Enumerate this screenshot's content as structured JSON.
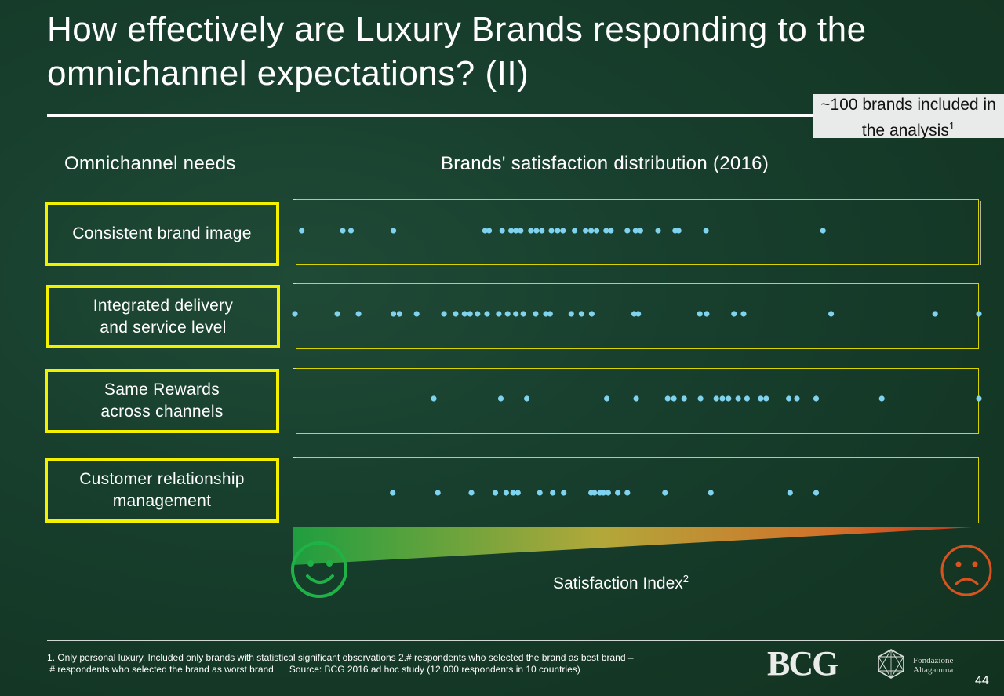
{
  "title": "How  effectively are Luxury Brands responding to the omnichannel expectations? (II)",
  "count_note": {
    "text": "~100 brands included in the analysis",
    "footnote_mark": "1"
  },
  "headers": {
    "needs": "Omnichannel needs",
    "distribution": "Brands' satisfaction distribution (2016)"
  },
  "axis": {
    "label": "Satisfaction Index",
    "footnote_mark": "2",
    "good_icon": "smiley-face-icon",
    "bad_icon": "sad-face-icon"
  },
  "colors": {
    "accent": "#f3f000",
    "dot": "#7fd3ee",
    "good": "#1fb347",
    "bad": "#d9531e",
    "background": "#173d2c"
  },
  "chart_data": {
    "type": "scatter",
    "categories": [
      "Consistent brand image",
      "Integrated delivery and service level",
      "Same Rewards across channels",
      "Customer relationship management"
    ],
    "category_labels": [
      "Consistent brand image",
      "Integrated delivery\nand service level",
      "Same Rewards\nacross channels",
      "Customer relationship\nmanagement"
    ],
    "xlim": [
      0,
      100
    ],
    "x_direction": "left = high satisfaction, right = low satisfaction",
    "series": [
      {
        "values": [
          1,
          7,
          8.2,
          14.4,
          27.8,
          28.4,
          30.3,
          31.6,
          32.3,
          33,
          34.5,
          35.3,
          36.1,
          37.5,
          38.4,
          39.2,
          40.9,
          42.5,
          43.3,
          44.1,
          45.5,
          46.2,
          48.6,
          49.8,
          50.5,
          53.1,
          55.6,
          56.1,
          60.1,
          77.2
        ]
      },
      {
        "values": [
          0,
          6.2,
          9.3,
          14.4,
          15.3,
          17.8,
          21.8,
          23.5,
          24.8,
          25.6,
          26.7,
          28.1,
          29.8,
          31.1,
          32.3,
          33.4,
          35.2,
          36.7,
          37.3,
          40.4,
          41.9,
          43.4,
          49.6,
          50.2,
          59.2,
          60.2,
          64.2,
          65.6,
          78.4,
          93.6,
          100
        ]
      },
      {
        "values": [
          20.3,
          30.1,
          33.9,
          45.6,
          49.9,
          54.5,
          55.4,
          56.9,
          59.3,
          61.6,
          62.5,
          63.4,
          64.8,
          66.1,
          68.1,
          68.9,
          73.4,
          72.2,
          76.2,
          85.8,
          100
        ]
      },
      {
        "values": [
          14.3,
          20.9,
          25.8,
          29.3,
          30.9,
          31.9,
          32.6,
          35.8,
          37.7,
          39.3,
          43.3,
          43.8,
          44.6,
          45.1,
          45.8,
          47.2,
          48.6,
          54.1,
          60.8,
          72.4,
          76.2
        ]
      }
    ]
  },
  "footnote": {
    "line1": "1. Only personal luxury, Included only brands with statistical significant observations 2.# respondents who selected the brand as best brand –",
    "line2": " # respondents who selected the brand as worst brand      Source: BCG 2016 ad hoc study (12,000 respondents in 10 countries)"
  },
  "logos": {
    "bcg": "BCG",
    "fondazione_line1": "Fondazione",
    "fondazione_line2": "Altagamma"
  },
  "page_number": "44"
}
